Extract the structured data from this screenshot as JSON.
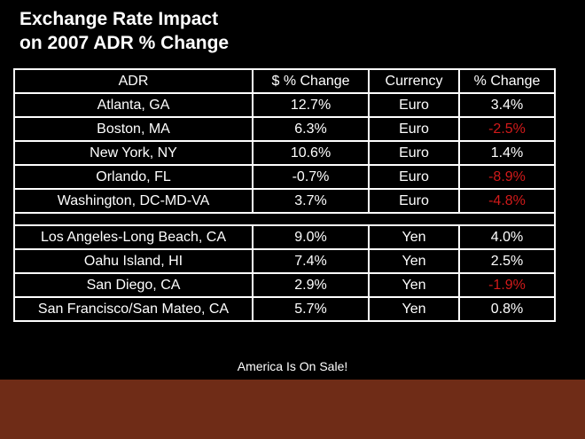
{
  "title_line1": "Exchange Rate Impact",
  "title_line2": "on 2007 ADR % Change",
  "table": {
    "headers": [
      "ADR",
      "$ % Change",
      "Currency",
      "% Change"
    ],
    "euro_rows": [
      {
        "city": "Atlanta, GA",
        "usd_change": "12.7%",
        "currency": "Euro",
        "pct_change": "3.4%",
        "negative": false
      },
      {
        "city": "Boston, MA",
        "usd_change": "6.3%",
        "currency": "Euro",
        "pct_change": "-2.5%",
        "negative": true
      },
      {
        "city": "New York, NY",
        "usd_change": "10.6%",
        "currency": "Euro",
        "pct_change": "1.4%",
        "negative": false
      },
      {
        "city": "Orlando, FL",
        "usd_change": "-0.7%",
        "currency": "Euro",
        "pct_change": "-8.9%",
        "negative": true
      },
      {
        "city": "Washington, DC-MD-VA",
        "usd_change": "3.7%",
        "currency": "Euro",
        "pct_change": "-4.8%",
        "negative": true
      }
    ],
    "yen_rows": [
      {
        "city": "Los Angeles-Long Beach, CA",
        "usd_change": "9.0%",
        "currency": "Yen",
        "pct_change": "4.0%",
        "negative": false
      },
      {
        "city": "Oahu Island, HI",
        "usd_change": "7.4%",
        "currency": "Yen",
        "pct_change": "2.5%",
        "negative": false
      },
      {
        "city": "San Diego, CA",
        "usd_change": "2.9%",
        "currency": "Yen",
        "pct_change": "-1.9%",
        "negative": true
      },
      {
        "city": "San Francisco/San Mateo, CA",
        "usd_change": "5.7%",
        "currency": "Yen",
        "pct_change": "0.8%",
        "negative": false
      }
    ]
  },
  "colors": {
    "background": "#000000",
    "text": "#ffffff",
    "negative": "#d11a1a",
    "footer_band": "#6f2c17"
  },
  "footer": "America Is On Sale!"
}
